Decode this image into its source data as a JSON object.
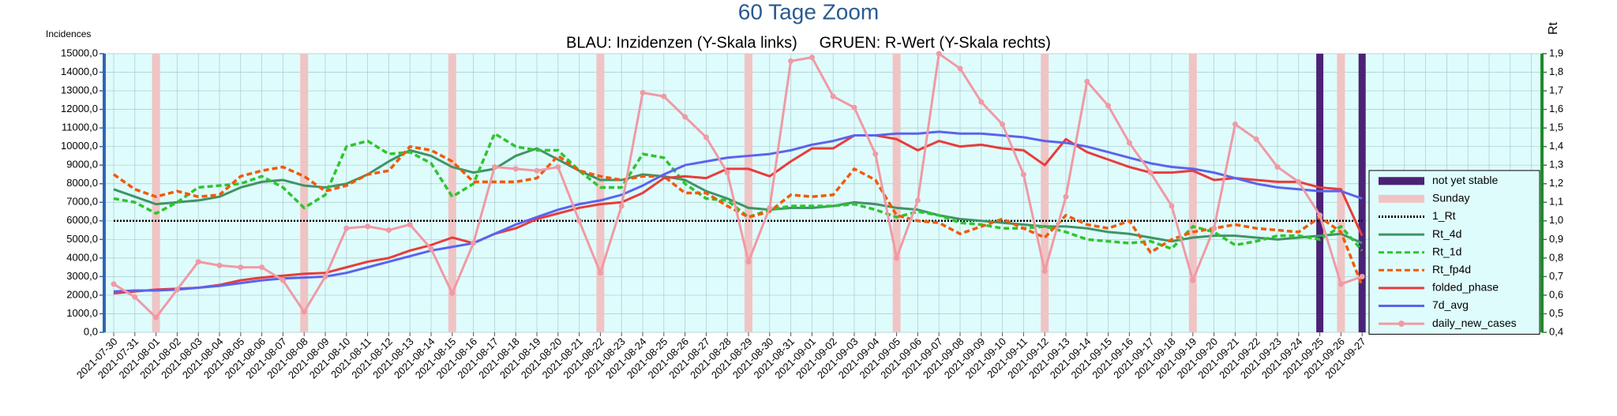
{
  "chart_data": {
    "type": "line",
    "title": "60 Tage Zoom",
    "subtitle": "BLAU: Inzidenzen (Y-Skala links)     GRUEN: R-Wert (Y-Skala rechts)",
    "ylabel": "Incidences",
    "y2label": "Rt",
    "categories": [
      "2021-07-30",
      "2021-07-31",
      "2021-08-01",
      "2021-08-02",
      "2021-08-03",
      "2021-08-04",
      "2021-08-05",
      "2021-08-06",
      "2021-08-07",
      "2021-08-08",
      "2021-08-09",
      "2021-08-10",
      "2021-08-11",
      "2021-08-12",
      "2021-08-13",
      "2021-08-14",
      "2021-08-15",
      "2021-08-16",
      "2021-08-17",
      "2021-08-18",
      "2021-08-19",
      "2021-08-20",
      "2021-08-21",
      "2021-08-22",
      "2021-08-23",
      "2021-08-24",
      "2021-08-25",
      "2021-08-26",
      "2021-08-27",
      "2021-08-28",
      "2021-08-29",
      "2021-08-30",
      "2021-08-31",
      "2021-09-01",
      "2021-09-02",
      "2021-09-03",
      "2021-09-04",
      "2021-09-05",
      "2021-09-06",
      "2021-09-07",
      "2021-09-08",
      "2021-09-09",
      "2021-09-10",
      "2021-09-11",
      "2021-09-12",
      "2021-09-13",
      "2021-09-14",
      "2021-09-15",
      "2021-09-16",
      "2021-09-17",
      "2021-09-18",
      "2021-09-19",
      "2021-09-20",
      "2021-09-21",
      "2021-09-22",
      "2021-09-23",
      "2021-09-24",
      "2021-09-25",
      "2021-09-26",
      "2021-09-27"
    ],
    "ylim": [
      0,
      15000
    ],
    "yticks": [
      {
        "value": 0,
        "label": "0,0"
      },
      {
        "value": 1000,
        "label": "1000,0"
      },
      {
        "value": 2000,
        "label": "2000,0"
      },
      {
        "value": 3000,
        "label": "3000,0"
      },
      {
        "value": 4000,
        "label": "4000,0"
      },
      {
        "value": 5000,
        "label": "5000,0"
      },
      {
        "value": 6000,
        "label": "6000,0"
      },
      {
        "value": 7000,
        "label": "7000,0"
      },
      {
        "value": 8000,
        "label": "8000,0"
      },
      {
        "value": 9000,
        "label": "9000,0"
      },
      {
        "value": 10000,
        "label": "10000,0"
      },
      {
        "value": 11000,
        "label": "11000,0"
      },
      {
        "value": 12000,
        "label": "12000,0"
      },
      {
        "value": 13000,
        "label": "13000,0"
      },
      {
        "value": 14000,
        "label": "14000,0"
      },
      {
        "value": 15000,
        "label": "15000,0"
      }
    ],
    "y2lim": [
      0.4,
      1.9
    ],
    "y2ticks": [
      {
        "value": 0.4,
        "label": "0,4"
      },
      {
        "value": 0.5,
        "label": "0,5"
      },
      {
        "value": 0.6,
        "label": "0,6"
      },
      {
        "value": 0.7,
        "label": "0,7"
      },
      {
        "value": 0.8,
        "label": "0,8"
      },
      {
        "value": 0.9,
        "label": "0,9"
      },
      {
        "value": 1.0,
        "label": "1,0"
      },
      {
        "value": 1.1,
        "label": "1,1"
      },
      {
        "value": 1.2,
        "label": "1,2"
      },
      {
        "value": 1.3,
        "label": "1,3"
      },
      {
        "value": 1.4,
        "label": "1,4"
      },
      {
        "value": 1.5,
        "label": "1,5"
      },
      {
        "value": 1.6,
        "label": "1,6"
      },
      {
        "value": 1.7,
        "label": "1,7"
      },
      {
        "value": 1.8,
        "label": "1,8"
      },
      {
        "value": 1.9,
        "label": "1,9"
      }
    ],
    "grid": true,
    "legend": "right",
    "series": [
      {
        "name": "not yet stable",
        "color": "#4b2275",
        "style": "band",
        "values": [
          null,
          null,
          null,
          null,
          null,
          null,
          null,
          null,
          null,
          null,
          null,
          null,
          null,
          null,
          null,
          null,
          null,
          null,
          null,
          null,
          null,
          null,
          null,
          null,
          null,
          null,
          null,
          null,
          null,
          null,
          null,
          null,
          null,
          null,
          null,
          null,
          null,
          null,
          null,
          null,
          null,
          null,
          null,
          null,
          null,
          null,
          null,
          null,
          null,
          null,
          null,
          null,
          null,
          null,
          null,
          null,
          null,
          15000,
          15000,
          15000
        ]
      },
      {
        "name": "Sunday",
        "color": "#f0c4c4",
        "style": "band",
        "values": [
          null,
          null,
          15000,
          null,
          null,
          null,
          null,
          null,
          null,
          15000,
          null,
          null,
          null,
          null,
          null,
          null,
          15000,
          null,
          null,
          null,
          null,
          null,
          null,
          15000,
          null,
          null,
          null,
          null,
          null,
          null,
          15000,
          null,
          null,
          null,
          null,
          null,
          null,
          15000,
          null,
          null,
          null,
          null,
          null,
          null,
          15000,
          null,
          null,
          null,
          null,
          null,
          null,
          15000,
          null,
          null,
          null,
          null,
          null,
          null,
          15000,
          null
        ]
      },
      {
        "name": "1_Rt",
        "color": "#000000",
        "style": "hline",
        "dash": "dotted",
        "axis": "y2",
        "value": 1.0
      },
      {
        "name": "Rt_4d",
        "color": "#3f9466",
        "dash": "solid",
        "axis": "y2",
        "values": [
          1.17,
          1.13,
          1.09,
          1.1,
          1.11,
          1.13,
          1.18,
          1.21,
          1.22,
          1.19,
          1.18,
          1.2,
          1.25,
          1.32,
          1.38,
          1.35,
          1.29,
          1.26,
          1.28,
          1.35,
          1.39,
          1.33,
          1.27,
          1.22,
          1.22,
          1.25,
          1.24,
          1.22,
          1.16,
          1.12,
          1.07,
          1.06,
          1.07,
          1.07,
          1.08,
          1.1,
          1.09,
          1.07,
          1.06,
          1.03,
          1.01,
          1.0,
          0.99,
          0.98,
          0.97,
          0.97,
          0.96,
          0.94,
          0.93,
          0.91,
          0.89,
          0.91,
          0.92,
          0.92,
          0.91,
          0.9,
          0.91,
          0.92,
          0.93,
          0.88
        ]
      },
      {
        "name": "Rt_1d",
        "color": "#2ec52e",
        "dash": "dashed",
        "axis": "y2",
        "values": [
          1.12,
          1.1,
          1.04,
          1.1,
          1.18,
          1.19,
          1.2,
          1.24,
          1.18,
          1.07,
          1.14,
          1.4,
          1.43,
          1.36,
          1.37,
          1.31,
          1.13,
          1.2,
          1.47,
          1.4,
          1.38,
          1.38,
          1.27,
          1.18,
          1.18,
          1.36,
          1.34,
          1.2,
          1.12,
          1.11,
          1.02,
          1.06,
          1.08,
          1.08,
          1.08,
          1.09,
          1.06,
          1.02,
          1.05,
          1.03,
          0.99,
          0.98,
          0.96,
          0.96,
          0.97,
          0.94,
          0.9,
          0.89,
          0.88,
          0.89,
          0.85,
          0.97,
          0.94,
          0.87,
          0.89,
          0.92,
          0.92,
          0.9,
          0.97,
          0.84
        ]
      },
      {
        "name": "Rt_fp4d",
        "color": "#f05a0a",
        "dash": "dashed",
        "axis": "y2",
        "values": [
          1.25,
          1.17,
          1.13,
          1.16,
          1.13,
          1.14,
          1.24,
          1.27,
          1.29,
          1.24,
          1.16,
          1.19,
          1.25,
          1.27,
          1.4,
          1.38,
          1.32,
          1.21,
          1.21,
          1.21,
          1.23,
          1.35,
          1.27,
          1.24,
          1.22,
          1.24,
          1.24,
          1.15,
          1.15,
          1.08,
          1.02,
          1.05,
          1.14,
          1.13,
          1.14,
          1.28,
          1.22,
          1.03,
          1.0,
          0.99,
          0.93,
          0.97,
          1.01,
          0.96,
          0.91,
          1.03,
          0.98,
          0.96,
          1.0,
          0.83,
          0.9,
          0.94,
          0.96,
          0.98,
          0.96,
          0.95,
          0.94,
          1.02,
          0.94,
          0.65
        ]
      },
      {
        "name": "folded_phase",
        "color": "#e83c3c",
        "dash": "solid",
        "values": [
          2100,
          2200,
          2300,
          2350,
          2400,
          2550,
          2800,
          2950,
          3050,
          3150,
          3200,
          3500,
          3800,
          4000,
          4400,
          4700,
          5100,
          4800,
          5300,
          5600,
          6100,
          6400,
          6700,
          6900,
          7000,
          7500,
          8300,
          8400,
          8300,
          8800,
          8800,
          8400,
          9200,
          9900,
          9900,
          10600,
          10600,
          10400,
          9800,
          10300,
          10000,
          10100,
          9900,
          9800,
          9000,
          10400,
          9700,
          9300,
          8900,
          8600,
          8600,
          8700,
          8200,
          8300,
          8200,
          8100,
          8100,
          7800,
          7700,
          5200
        ]
      },
      {
        "name": "7d_avg",
        "color": "#5b63ee",
        "dash": "solid",
        "values": [
          2200,
          2250,
          2250,
          2300,
          2400,
          2500,
          2650,
          2800,
          2900,
          2950,
          3000,
          3200,
          3500,
          3800,
          4100,
          4400,
          4600,
          4800,
          5300,
          5800,
          6200,
          6600,
          6900,
          7100,
          7400,
          7900,
          8500,
          9000,
          9200,
          9400,
          9500,
          9600,
          9800,
          10100,
          10300,
          10600,
          10600,
          10700,
          10700,
          10800,
          10700,
          10700,
          10600,
          10500,
          10300,
          10200,
          10000,
          9700,
          9400,
          9100,
          8900,
          8800,
          8600,
          8300,
          8000,
          7800,
          7700,
          7600,
          7600,
          7200
        ]
      },
      {
        "name": "daily_new_cases",
        "color": "#f09aa4",
        "dash": "solid",
        "marker": "circle",
        "values": [
          2600,
          1900,
          800,
          2300,
          3800,
          3600,
          3500,
          3500,
          2800,
          1100,
          3000,
          5600,
          5700,
          5500,
          5800,
          4500,
          2100,
          4800,
          8900,
          8800,
          8700,
          8900,
          6000,
          3200,
          6800,
          12900,
          12700,
          11600,
          10500,
          8600,
          3800,
          6700,
          14600,
          14800,
          12700,
          12100,
          9600,
          4000,
          7100,
          15000,
          14200,
          12400,
          11200,
          8500,
          3300,
          7300,
          13500,
          12200,
          10200,
          8600,
          6800,
          2800,
          5600,
          11200,
          10400,
          8900,
          8100,
          6300,
          2600,
          3000
        ]
      }
    ]
  }
}
